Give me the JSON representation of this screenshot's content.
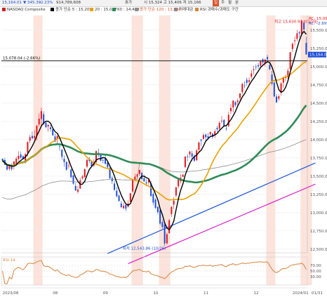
{
  "toolbar": {
    "price": "15,164.01",
    "change": "▼ 345.39",
    "change_pct": "-2.23%",
    "volume": "914,789,608",
    "quote_label": "호가",
    "range": "시 15,324 고 15,406 저 15,166",
    "btn_daily": "일",
    "btn_weekly": "주",
    "btn_monthly": "월",
    "btn_minute": "분"
  },
  "legend": {
    "symbol": "NASDAQ Composite",
    "ma5": "종가 단순 5 : 15,209",
    "ma20": "20 : 15,037",
    "ma60": "60 : 14,433",
    "ma120": "종가 단순 120 : 13,998",
    "volume": "거래대금",
    "rsi_label": "RSI 과매수/과매도 구간"
  },
  "annotations": {
    "high": "최고 15,630.93 (01/29)",
    "low": "최저 12,543.86 (10/26)",
    "hline": "15,078.04 (-2.66%)",
    "rsi": "RSI 14",
    "last_price": "15,164.01",
    "rc": "RC: 15,093",
    "rc2": "RC: -2.89%"
  },
  "chart_data": {
    "type": "candlestick",
    "x_labels": [
      "2023/08",
      "08",
      "09",
      "10",
      "11",
      "12",
      "2024/01",
      "01/31"
    ],
    "y_ticks": [
      12500,
      12750,
      13000,
      13250,
      13500,
      13750,
      14000,
      14250,
      14500,
      14750,
      15000,
      15250,
      15500
    ],
    "y_range": [
      12450,
      15700
    ],
    "rsi_ticks": [
      70,
      50,
      30
    ],
    "colors": {
      "up": "#e8131a",
      "down": "#1e4fd8",
      "ma5": "#000000",
      "ma20": "#e8a100",
      "ma60": "#2e8b57",
      "ma120": "#8c8c8c",
      "trend1": "#1f56d6",
      "trend2": "#d81ec9",
      "shade": "#fbd9cf",
      "rsi": "#d9823b"
    },
    "ohlc": [
      [
        13738,
        13742,
        13705,
        13712
      ],
      [
        13720,
        13750,
        13648,
        13656
      ],
      [
        13640,
        13670,
        13577,
        13590
      ],
      [
        13600,
        13650,
        13576,
        13633
      ],
      [
        13645,
        13674,
        13572,
        13596
      ],
      [
        13632,
        13702,
        13590,
        13701
      ],
      [
        13661,
        13765,
        13640,
        13739
      ],
      [
        13735,
        13841,
        13709,
        13777
      ],
      [
        13797,
        13837,
        13735,
        13752
      ],
      [
        13773,
        13784,
        13728,
        13729
      ],
      [
        13714,
        13820,
        13671,
        13800
      ],
      [
        13820,
        13980,
        13765,
        13965
      ],
      [
        13983,
        14063,
        13950,
        14033
      ],
      [
        14050,
        14109,
        14002,
        14018
      ],
      [
        14020,
        14129,
        13981,
        14050
      ],
      [
        14050,
        14202,
        13990,
        14191
      ],
      [
        14208,
        14358,
        14180,
        14286
      ],
      [
        14280,
        14438,
        14195,
        14390
      ],
      [
        14348,
        14387,
        14200,
        14217
      ],
      [
        14230,
        14253,
        14160,
        14169
      ],
      [
        14180,
        14214,
        14108,
        14199
      ],
      [
        14168,
        14202,
        14110,
        14143
      ],
      [
        14140,
        14167,
        14050,
        14058
      ],
      [
        14042,
        14083,
        13970,
        13972
      ],
      [
        14007,
        14060,
        13940,
        14050
      ],
      [
        13908,
        13950,
        13845,
        13902
      ],
      [
        13860,
        13871,
        13725,
        13765
      ],
      [
        13736,
        13784,
        13628,
        13693
      ],
      [
        13693,
        13701,
        13575,
        13589
      ],
      [
        13645,
        13720,
        13600,
        13645
      ],
      [
        13590,
        13601,
        13470,
        13487
      ],
      [
        13509,
        13520,
        13380,
        13396
      ],
      [
        13365,
        13407,
        13300,
        13302
      ],
      [
        13286,
        13361,
        13260,
        13315
      ],
      [
        13330,
        13476,
        13325,
        13441
      ],
      [
        13470,
        13517,
        13450,
        13495
      ],
      [
        13488,
        13607,
        13475,
        13594
      ],
      [
        13630,
        13737,
        13610,
        13722
      ],
      [
        13730,
        13764,
        13680,
        13706
      ],
      [
        13697,
        13700,
        13627,
        13632
      ],
      [
        13646,
        13730,
        13625,
        13695
      ],
      [
        13690,
        13850,
        13670,
        13842
      ],
      [
        13819,
        13875,
        13762,
        13813
      ],
      [
        13790,
        13805,
        13700,
        13710
      ],
      [
        13720,
        13760,
        13670,
        13714
      ],
      [
        13740,
        13782,
        13660,
        13668
      ],
      [
        13686,
        13700,
        13600,
        13621
      ],
      [
        13610,
        13623,
        13460,
        13470
      ],
      [
        13475,
        13500,
        13390,
        13430
      ],
      [
        13398,
        13440,
        13300,
        13312
      ],
      [
        13300,
        13350,
        13210,
        13223
      ],
      [
        13233,
        13250,
        13150,
        13159
      ],
      [
        13125,
        13160,
        13060,
        13075
      ],
      [
        13060,
        13140,
        13050,
        13092
      ],
      [
        13108,
        13110,
        13020,
        13054
      ],
      [
        13080,
        13170,
        13070,
        13124
      ],
      [
        13150,
        13270,
        13140,
        13264
      ],
      [
        13290,
        13461,
        13275,
        13445
      ],
      [
        13452,
        13530,
        13430,
        13493
      ],
      [
        13490,
        13530,
        13460,
        13523
      ],
      [
        13530,
        13584,
        13505,
        13584
      ],
      [
        13544,
        13560,
        13450,
        13460
      ],
      [
        13470,
        13514,
        13425,
        13427
      ],
      [
        13414,
        13460,
        13360,
        13400
      ],
      [
        13415,
        13470,
        13380,
        13451
      ],
      [
        13403,
        13430,
        13220,
        13226
      ],
      [
        13256,
        13280,
        13100,
        13137
      ],
      [
        13180,
        13200,
        13050,
        13065
      ],
      [
        13078,
        13090,
        12980,
        13006
      ],
      [
        13030,
        13050,
        12830,
        12850
      ],
      [
        12870,
        12900,
        12780,
        12803
      ],
      [
        12836,
        12860,
        12543,
        12578
      ],
      [
        12580,
        12725,
        12560,
        12704
      ],
      [
        12720,
        12910,
        12713,
        12895
      ],
      [
        12980,
        13090,
        12940,
        13078
      ],
      [
        13110,
        13210,
        13050,
        13164
      ],
      [
        13236,
        13350,
        13210,
        13348
      ],
      [
        13360,
        13480,
        13330,
        13454
      ],
      [
        13430,
        13528,
        13398,
        13478
      ],
      [
        13490,
        13525,
        13500,
        13521
      ],
      [
        13624,
        13770,
        13607,
        13768
      ],
      [
        13770,
        13800,
        13705,
        13762
      ],
      [
        13798,
        13845,
        13752,
        13836
      ],
      [
        13810,
        13845,
        13710,
        13767
      ],
      [
        13766,
        13800,
        13694,
        13710
      ],
      [
        13720,
        13875,
        13703,
        13851
      ],
      [
        13860,
        13975,
        13820,
        13960
      ],
      [
        14000,
        14010,
        13915,
        13985
      ],
      [
        14010,
        14090,
        14000,
        14062
      ],
      [
        14070,
        14081,
        13980,
        14032
      ],
      [
        14045,
        14090,
        14000,
        14025
      ],
      [
        14070,
        14110,
        14050,
        14104
      ],
      [
        14080,
        14090,
        14010,
        14035
      ],
      [
        14060,
        14140,
        14020,
        14115
      ],
      [
        14160,
        14190,
        14100,
        14140
      ],
      [
        14150,
        14250,
        14120,
        14229
      ],
      [
        14250,
        14320,
        14220,
        14258
      ],
      [
        14270,
        14280,
        14180,
        14185
      ],
      [
        14150,
        14200,
        14120,
        14147
      ],
      [
        14185,
        14380,
        14170,
        14339
      ],
      [
        14390,
        14480,
        14350,
        14432
      ],
      [
        14440,
        14540,
        14370,
        14533
      ],
      [
        14512,
        14530,
        14448,
        14472
      ],
      [
        14515,
        14560,
        14470,
        14533
      ],
      [
        14570,
        14636,
        14530,
        14631
      ],
      [
        14650,
        14780,
        14620,
        14761
      ],
      [
        14740,
        14800,
        14700,
        14733
      ],
      [
        14820,
        14850,
        14740,
        14777
      ],
      [
        14790,
        14850,
        14750,
        14813
      ],
      [
        14860,
        14950,
        14830,
        14905
      ],
      [
        14950,
        15010,
        14890,
        14963
      ],
      [
        15000,
        15030,
        14950,
        14992
      ],
      [
        15020,
        15050,
        14970,
        15003
      ],
      [
        15010,
        15090,
        14985,
        15074
      ],
      [
        15100,
        15120,
        15010,
        15055
      ],
      [
        15040,
        15110,
        15000,
        15095
      ],
      [
        15130,
        15160,
        15060,
        15099
      ],
      [
        15020,
        15050,
        14950,
        14963
      ],
      [
        14890,
        14940,
        14740,
        14765
      ],
      [
        14780,
        14800,
        14580,
        14592
      ],
      [
        14590,
        14625,
        14500,
        14510
      ],
      [
        14560,
        14620,
        14530,
        14593
      ],
      [
        14650,
        14790,
        14600,
        14769
      ],
      [
        14780,
        14860,
        14710,
        14857
      ],
      [
        14844,
        14890,
        14800,
        14855
      ],
      [
        14855,
        14980,
        14830,
        14944
      ],
      [
        14970,
        15200,
        14950,
        15198
      ],
      [
        15240,
        15330,
        15200,
        15311
      ],
      [
        15350,
        15410,
        15290,
        15361
      ],
      [
        15380,
        15500,
        15350,
        15455
      ],
      [
        15470,
        15490,
        15400,
        15456
      ],
      [
        15450,
        15630,
        15420,
        15628
      ],
      [
        15600,
        15630,
        15490,
        15509
      ],
      [
        15324,
        15406,
        15166,
        15164
      ]
    ]
  }
}
